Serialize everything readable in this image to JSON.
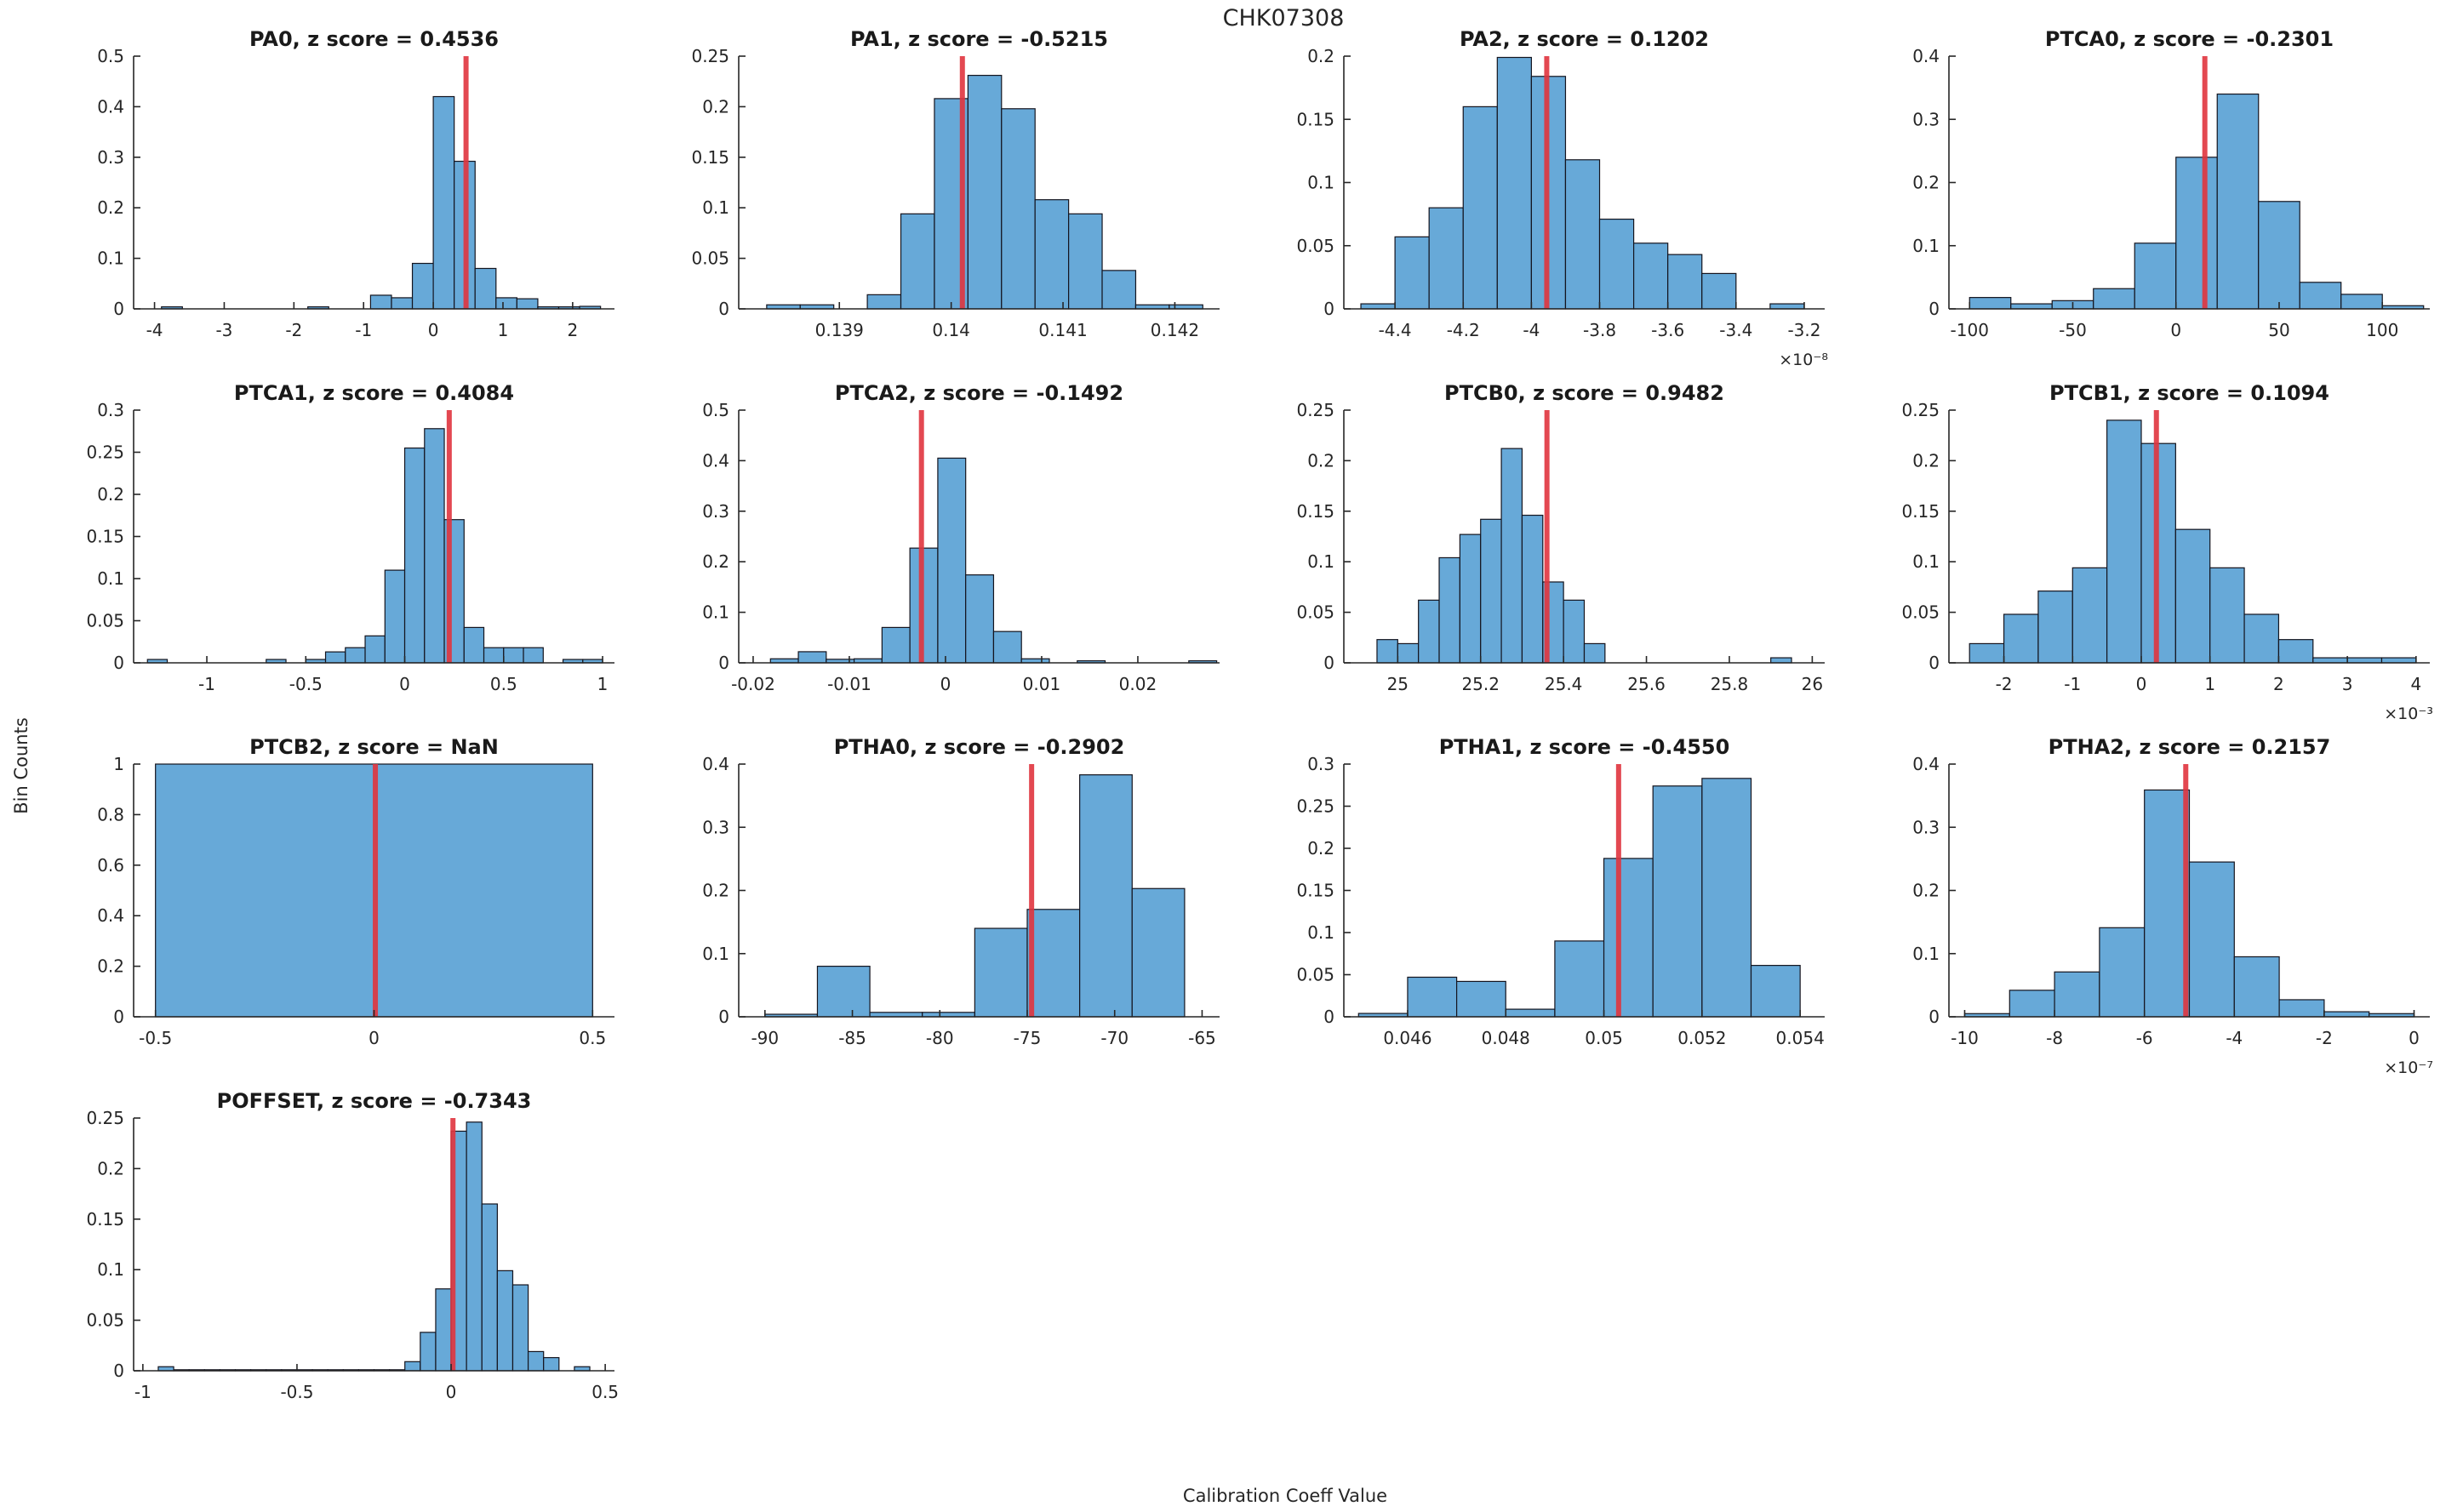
{
  "colors": {
    "bar_fill": "#67a9d8",
    "bar_edge": "#14141e",
    "marker_red": "#e0343e",
    "axis": "#262626",
    "text": "#262626",
    "background": "#ffffff"
  },
  "chart_data": {
    "type": "bar",
    "subtype": "histogram-grid",
    "figure_title": "CHK07308",
    "xlabel": "Calibration Coeff Value",
    "ylabel": "Bin Counts",
    "grid": {
      "rows": 4,
      "cols": 4
    },
    "legend": "none",
    "subplots": [
      {
        "id": "PA0",
        "row": 0,
        "col": 0,
        "title": "PA0, z score = 0.4536",
        "z_score": "0.4536",
        "xlim": [
          -4.3,
          2.6
        ],
        "ylim": [
          0,
          0.5
        ],
        "bin_start": -3.9,
        "bin_width": 0.3,
        "heights": [
          0.004,
          0,
          0,
          0,
          0,
          0,
          0,
          0.004,
          0,
          0,
          0.027,
          0.022,
          0.09,
          0.42,
          0.292,
          0.08,
          0.022,
          0.02,
          0.004,
          0.004,
          0.005
        ],
        "xticks": [
          -4,
          -3,
          -2,
          -1,
          0,
          1,
          2
        ],
        "xtick_labels": [
          "-4",
          "-3",
          "-2",
          "-1",
          "0",
          "1",
          "2"
        ],
        "yticks": [
          0,
          0.1,
          0.2,
          0.3,
          0.4,
          0.5
        ],
        "ytick_labels": [
          "0",
          "0.1",
          "0.2",
          "0.3",
          "0.4",
          "0.5"
        ],
        "marker_x": 0.47,
        "exponent": null
      },
      {
        "id": "PA1",
        "row": 0,
        "col": 1,
        "title": "PA1, z score = -0.5215",
        "z_score": "-0.5215",
        "xlim": [
          0.1381,
          0.1424
        ],
        "ylim": [
          0,
          0.25
        ],
        "bin_start": 0.13835,
        "bin_width": 0.0003,
        "heights": [
          0.004,
          0.004,
          0,
          0.014,
          0.094,
          0.208,
          0.231,
          0.198,
          0.108,
          0.094,
          0.038,
          0.004,
          0.004
        ],
        "xticks": [
          0.139,
          0.14,
          0.141,
          0.142
        ],
        "xtick_labels": [
          "0.139",
          "0.14",
          "0.141",
          "0.142"
        ],
        "yticks": [
          0,
          0.05,
          0.1,
          0.15,
          0.2,
          0.25
        ],
        "ytick_labels": [
          "0",
          "0.05",
          "0.1",
          "0.15",
          "0.2",
          "0.25"
        ],
        "marker_x": 0.1401,
        "exponent": null
      },
      {
        "id": "PA2",
        "row": 0,
        "col": 2,
        "title": "PA2, z score = 0.1202",
        "z_score": "0.1202",
        "xlim": [
          -4.55,
          -3.14
        ],
        "ylim": [
          0,
          0.2
        ],
        "bin_start": -4.5,
        "bin_width": 0.1,
        "heights": [
          0.004,
          0.057,
          0.08,
          0.16,
          0.199,
          0.184,
          0.118,
          0.071,
          0.052,
          0.043,
          0.028,
          0,
          0.004
        ],
        "xticks": [
          -4.4,
          -4.2,
          -4,
          -3.8,
          -3.6,
          -3.4,
          -3.2
        ],
        "xtick_labels": [
          "-4.4",
          "-4.2",
          "-4",
          "-3.8",
          "-3.6",
          "-3.4",
          "-3.2"
        ],
        "yticks": [
          0,
          0.05,
          0.1,
          0.15,
          0.2
        ],
        "ytick_labels": [
          "0",
          "0.05",
          "0.1",
          "0.15",
          "0.2"
        ],
        "marker_x": -3.955,
        "exponent": "×10⁻⁸"
      },
      {
        "id": "PTCA0",
        "row": 0,
        "col": 3,
        "title": "PTCA0, z score = -0.2301",
        "z_score": "-0.2301",
        "xlim": [
          -110,
          123
        ],
        "ylim": [
          0,
          0.4
        ],
        "bin_start": -100,
        "bin_width": 20,
        "heights": [
          0.018,
          0.008,
          0.013,
          0.032,
          0.104,
          0.24,
          0.34,
          0.17,
          0.042,
          0.023,
          0.005
        ],
        "xticks": [
          -100,
          -50,
          0,
          50,
          100
        ],
        "xtick_labels": [
          "-100",
          "-50",
          "0",
          "50",
          "100"
        ],
        "yticks": [
          0,
          0.1,
          0.2,
          0.3,
          0.4
        ],
        "ytick_labels": [
          "0",
          "0.1",
          "0.2",
          "0.3",
          "0.4"
        ],
        "marker_x": 14,
        "exponent": null
      },
      {
        "id": "PTCA1",
        "row": 1,
        "col": 0,
        "title": "PTCA1, z score = 0.4084",
        "z_score": "0.4084",
        "xlim": [
          -1.37,
          1.06
        ],
        "ylim": [
          0,
          0.3
        ],
        "bin_start": -1.3,
        "bin_width": 0.1,
        "heights": [
          0.004,
          0,
          0,
          0,
          0,
          0,
          0.004,
          0,
          0.004,
          0.013,
          0.018,
          0.032,
          0.11,
          0.255,
          0.278,
          0.17,
          0.042,
          0.018,
          0.018,
          0.018,
          0,
          0.004,
          0.004
        ],
        "xticks": [
          -1,
          -0.5,
          0,
          0.5,
          1
        ],
        "xtick_labels": [
          "-1",
          "-0.5",
          "0",
          "0.5",
          "1"
        ],
        "yticks": [
          0,
          0.05,
          0.1,
          0.15,
          0.2,
          0.25,
          0.3
        ],
        "ytick_labels": [
          "0",
          "0.05",
          "0.1",
          "0.15",
          "0.2",
          "0.25",
          "0.3"
        ],
        "marker_x": 0.225,
        "exponent": null
      },
      {
        "id": "PTCA2",
        "row": 1,
        "col": 1,
        "title": "PTCA2, z score = -0.1492",
        "z_score": "-0.1492",
        "xlim": [
          -0.0215,
          0.0285
        ],
        "ylim": [
          0,
          0.5
        ],
        "bin_start": -0.0182,
        "bin_width": 0.0029,
        "heights": [
          0.008,
          0.022,
          0.007,
          0.008,
          0.07,
          0.227,
          0.405,
          0.174,
          0.062,
          0.008,
          0,
          0.004,
          0,
          0,
          0,
          0.004
        ],
        "xticks": [
          -0.02,
          -0.01,
          0,
          0.01,
          0.02
        ],
        "xtick_labels": [
          "-0.02",
          "-0.01",
          "0",
          "0.01",
          "0.02"
        ],
        "yticks": [
          0,
          0.1,
          0.2,
          0.3,
          0.4,
          0.5
        ],
        "ytick_labels": [
          "0",
          "0.1",
          "0.2",
          "0.3",
          "0.4",
          "0.5"
        ],
        "marker_x": -0.0025,
        "exponent": null
      },
      {
        "id": "PTCB0",
        "row": 1,
        "col": 2,
        "title": "PTCB0, z score = 0.9482",
        "z_score": "0.9482",
        "xlim": [
          24.87,
          26.03
        ],
        "ylim": [
          0,
          0.25
        ],
        "bin_start": 24.95,
        "bin_width": 0.05,
        "heights": [
          0.023,
          0.019,
          0.062,
          0.104,
          0.127,
          0.142,
          0.212,
          0.146,
          0.08,
          0.062,
          0.019,
          0,
          0,
          0,
          0,
          0,
          0,
          0,
          0,
          0.005
        ],
        "xticks": [
          25,
          25.2,
          25.4,
          25.6,
          25.8,
          26
        ],
        "xtick_labels": [
          "25",
          "25.2",
          "25.4",
          "25.6",
          "25.8",
          "26"
        ],
        "yticks": [
          0,
          0.05,
          0.1,
          0.15,
          0.2,
          0.25
        ],
        "ytick_labels": [
          "0",
          "0.05",
          "0.1",
          "0.15",
          "0.2",
          "0.25"
        ],
        "marker_x": 25.36,
        "exponent": null
      },
      {
        "id": "PTCB1",
        "row": 1,
        "col": 3,
        "title": "PTCB1, z score = 0.1094",
        "z_score": "0.1094",
        "xlim": [
          -2.8,
          4.2
        ],
        "ylim": [
          0,
          0.25
        ],
        "bin_start": -2.5,
        "bin_width": 0.5,
        "heights": [
          0.019,
          0.048,
          0.071,
          0.094,
          0.24,
          0.217,
          0.132,
          0.094,
          0.048,
          0.023,
          0.005,
          0.005,
          0.005
        ],
        "xticks": [
          -2,
          -1,
          0,
          1,
          2,
          3,
          4
        ],
        "xtick_labels": [
          "-2",
          "-1",
          "0",
          "1",
          "2",
          "3",
          "4"
        ],
        "yticks": [
          0,
          0.05,
          0.1,
          0.15,
          0.2,
          0.25
        ],
        "ytick_labels": [
          "0",
          "0.05",
          "0.1",
          "0.15",
          "0.2",
          "0.25"
        ],
        "marker_x": 0.22,
        "exponent": "×10⁻³"
      },
      {
        "id": "PTCB2",
        "row": 2,
        "col": 0,
        "title": "PTCB2, z score = NaN",
        "z_score": "NaN",
        "xlim": [
          -0.55,
          0.55
        ],
        "ylim": [
          0,
          1
        ],
        "bin_start": -0.5,
        "bin_width": 1.0,
        "heights": [
          1.0
        ],
        "xticks": [
          -0.5,
          0,
          0.5
        ],
        "xtick_labels": [
          "-0.5",
          "0",
          "0.5"
        ],
        "yticks": [
          0,
          0.2,
          0.4,
          0.6,
          0.8,
          1
        ],
        "ytick_labels": [
          "0",
          "0.2",
          "0.4",
          "0.6",
          "0.8",
          "1"
        ],
        "marker_x": 0.003,
        "exponent": null
      },
      {
        "id": "PTHA0",
        "row": 2,
        "col": 1,
        "title": "PTHA0, z score = -0.2902",
        "z_score": "-0.2902",
        "xlim": [
          -91.5,
          -64
        ],
        "ylim": [
          0,
          0.4
        ],
        "bin_start": -90,
        "bin_width": 3,
        "heights": [
          0.004,
          0.08,
          0.007,
          0.007,
          0.14,
          0.17,
          0.383,
          0.203
        ],
        "xticks": [
          -90,
          -85,
          -80,
          -75,
          -70,
          -65
        ],
        "xtick_labels": [
          "-90",
          "-85",
          "-80",
          "-75",
          "-70",
          "-65"
        ],
        "yticks": [
          0,
          0.1,
          0.2,
          0.3,
          0.4
        ],
        "ytick_labels": [
          "0",
          "0.1",
          "0.2",
          "0.3",
          "0.4"
        ],
        "marker_x": -74.75,
        "exponent": null
      },
      {
        "id": "PTHA1",
        "row": 2,
        "col": 2,
        "title": "PTHA1, z score = -0.4550",
        "z_score": "-0.4550",
        "xlim": [
          0.0447,
          0.0545
        ],
        "ylim": [
          0,
          0.3
        ],
        "bin_start": 0.045,
        "bin_width": 0.001,
        "heights": [
          0.004,
          0.047,
          0.042,
          0.009,
          0.09,
          0.188,
          0.274,
          0.283,
          0.061
        ],
        "xticks": [
          0.046,
          0.048,
          0.05,
          0.052,
          0.054
        ],
        "xtick_labels": [
          "0.046",
          "0.048",
          "0.05",
          "0.052",
          "0.054"
        ],
        "yticks": [
          0,
          0.05,
          0.1,
          0.15,
          0.2,
          0.25,
          0.3
        ],
        "ytick_labels": [
          "0",
          "0.05",
          "0.1",
          "0.15",
          "0.2",
          "0.25",
          "0.3"
        ],
        "marker_x": 0.0503,
        "exponent": null
      },
      {
        "id": "PTHA2",
        "row": 2,
        "col": 3,
        "title": "PTHA2, z score = 0.2157",
        "z_score": "0.2157",
        "xlim": [
          -10.35,
          0.35
        ],
        "ylim": [
          0,
          0.4
        ],
        "bin_start": -10,
        "bin_width": 1,
        "heights": [
          0.005,
          0.042,
          0.071,
          0.141,
          0.359,
          0.245,
          0.095,
          0.027,
          0.008,
          0.005
        ],
        "xticks": [
          -10,
          -8,
          -6,
          -4,
          -2,
          0
        ],
        "xtick_labels": [
          "-10",
          "-8",
          "-6",
          "-4",
          "-2",
          "0"
        ],
        "yticks": [
          0,
          0.1,
          0.2,
          0.3,
          0.4
        ],
        "ytick_labels": [
          "0",
          "0.1",
          "0.2",
          "0.3",
          "0.4"
        ],
        "marker_x": -5.08,
        "exponent": "×10⁻⁷"
      },
      {
        "id": "POFFSET",
        "row": 3,
        "col": 0,
        "title": "POFFSET, z score = -0.7343",
        "z_score": "-0.7343",
        "xlim": [
          -1.03,
          0.53
        ],
        "ylim": [
          0,
          0.25
        ],
        "bin_start": -0.95,
        "bin_width": 0.05,
        "heights": [
          0.004,
          0.001,
          0.001,
          0.001,
          0.001,
          0.001,
          0.001,
          0.001,
          0.001,
          0.001,
          0.001,
          0.001,
          0.001,
          0.001,
          0.001,
          0.001,
          0.009,
          0.038,
          0.081,
          0.237,
          0.246,
          0.165,
          0.099,
          0.085,
          0.019,
          0.013,
          0,
          0.004
        ],
        "xticks": [
          -1,
          -0.5,
          0,
          0.5
        ],
        "xtick_labels": [
          "-1",
          "-0.5",
          "0",
          "0.5"
        ],
        "yticks": [
          0,
          0.05,
          0.1,
          0.15,
          0.2,
          0.25
        ],
        "ytick_labels": [
          "0",
          "0.05",
          "0.1",
          "0.15",
          "0.2",
          "0.25"
        ],
        "marker_x": 0.006,
        "exponent": null
      }
    ]
  }
}
